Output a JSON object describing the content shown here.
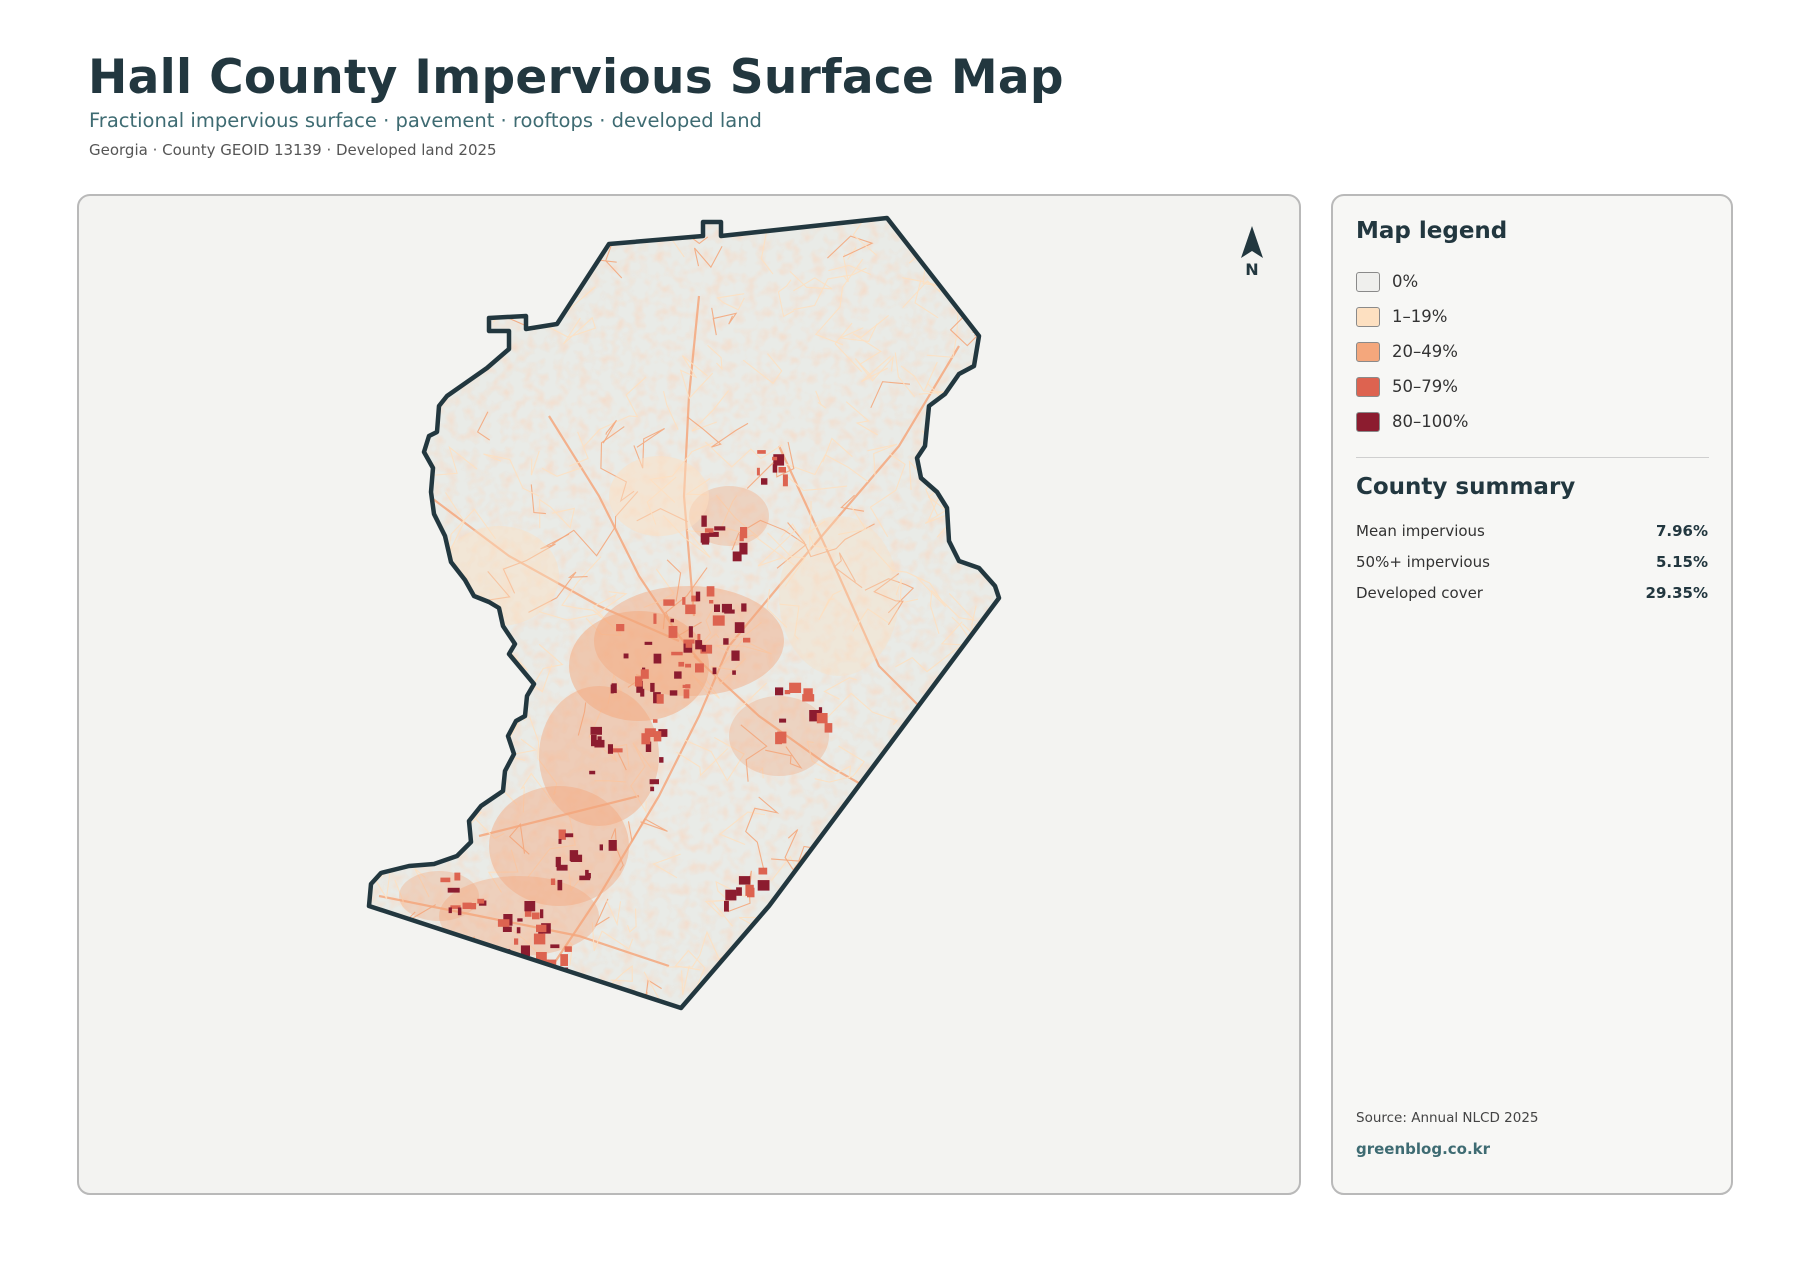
{
  "header": {
    "title": "Hall County Impervious Surface Map",
    "subtitle": "Fractional impervious surface · pavement · rooftops · developed land",
    "meta": "Georgia · County GEOID 13139 · Developed land 2025"
  },
  "map": {
    "north_label": "N",
    "colors": {
      "background": "#f3f3f1",
      "county_fill": "#e9ebe7",
      "boundary": "#22373f"
    }
  },
  "legend": {
    "heading": "Map legend",
    "items": [
      {
        "label": "0%",
        "color": "#efefed"
      },
      {
        "label": "1–19%",
        "color": "#fde0c1"
      },
      {
        "label": "20–49%",
        "color": "#f4a77c"
      },
      {
        "label": "50–79%",
        "color": "#dd6350"
      },
      {
        "label": "80–100%",
        "color": "#8c1c2f"
      }
    ]
  },
  "summary": {
    "heading": "County summary",
    "rows": [
      {
        "label": "Mean impervious",
        "value": "7.96%"
      },
      {
        "label": "50%+ impervious",
        "value": "5.15%"
      },
      {
        "label": "Developed cover",
        "value": "29.35%"
      }
    ]
  },
  "footer": {
    "source": "Source: Annual NLCD 2025",
    "site": "greenblog.co.kr"
  }
}
